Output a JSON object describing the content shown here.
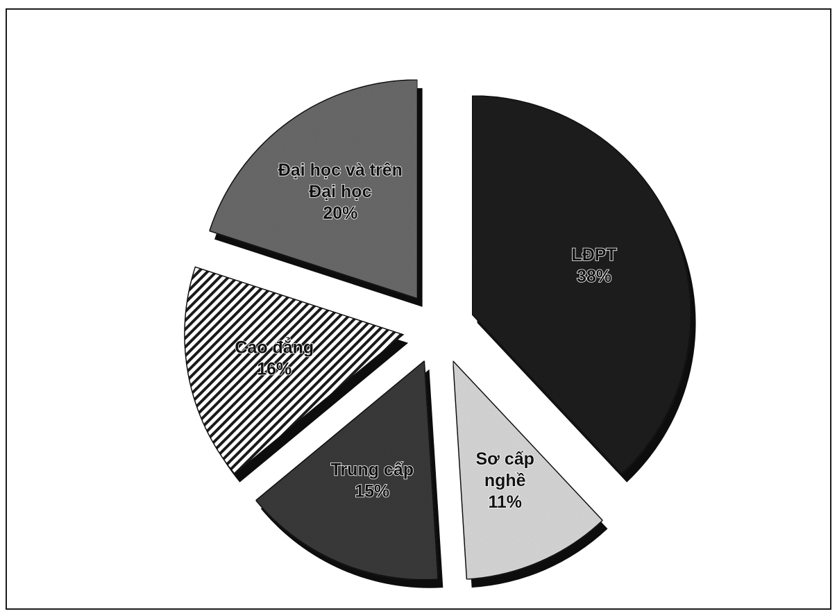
{
  "chart_data": {
    "type": "pie",
    "title": "",
    "start_angle_deg": 0,
    "direction": "clockwise",
    "exploded": true,
    "three_d": true,
    "slices": [
      {
        "label_lines": [
          "LĐPT",
          "38%"
        ],
        "value": 38,
        "color": "#1f1f1f",
        "pattern": "dark-noise"
      },
      {
        "label_lines": [
          "Sơ cấp",
          "nghề",
          "11%"
        ],
        "value": 11,
        "color": "#d8d8d8",
        "pattern": "light-noise"
      },
      {
        "label_lines": [
          "Trung cấp",
          "15%"
        ],
        "value": 15,
        "color": "#3a3a3a",
        "pattern": "dark-noise"
      },
      {
        "label_lines": [
          "Cao đẳng",
          "16%"
        ],
        "value": 16,
        "color": "#ffffff",
        "pattern": "diagonal-stripes"
      },
      {
        "label_lines": [
          "Đại học và trên",
          "Đại học",
          "20%"
        ],
        "value": 20,
        "color": "#6a6a6a",
        "pattern": "mid-noise"
      }
    ]
  }
}
